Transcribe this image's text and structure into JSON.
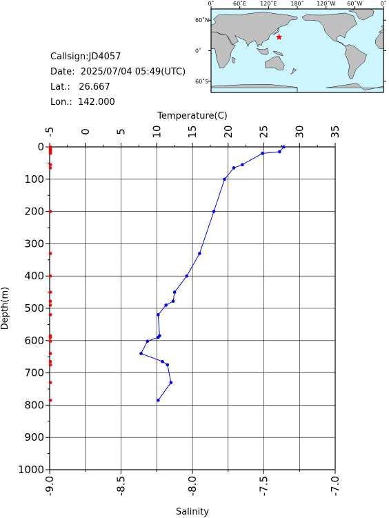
{
  "station": {
    "callsign_label": "Callsign:",
    "callsign": "JD4057",
    "date_label": "Date:",
    "date": "2025/07/04 05:49(UTC)",
    "lat_label": "Lat.:",
    "lat": "26.667",
    "lon_label": "Lon.:",
    "lon": "142.000"
  },
  "map": {
    "top_ticks": [
      "0˚",
      "60˚E",
      "120˚E",
      "180˚",
      "120˚W",
      "60˚W",
      "0˚"
    ],
    "right_ticks": [
      "60˚N",
      "0˚",
      "60˚S"
    ],
    "ocean_color": "#ccf5ff",
    "land_color": "#bfbfbf",
    "marker_color": "#ff0000",
    "marker": {
      "lon": 142.0,
      "lat": 26.667
    }
  },
  "chart_data": {
    "type": "line",
    "title": "",
    "top_axis_label": "Temperature(C)",
    "bottom_axis_label": "Salinity",
    "left_axis_label": "Depth(m)",
    "temperature_range": [
      -5,
      35
    ],
    "temperature_ticks": [
      "-5",
      "0",
      "5",
      "10",
      "15",
      "20",
      "25",
      "30",
      "35"
    ],
    "salinity_range": [
      -9.0,
      -7.0
    ],
    "salinity_ticks": [
      "-9.0",
      "-8.5",
      "-8.0",
      "-7.5",
      "-7.0"
    ],
    "depth_range": [
      0,
      1000
    ],
    "depth_ticks": [
      "0",
      "100",
      "200",
      "300",
      "400",
      "500",
      "600",
      "700",
      "800",
      "900",
      "1000"
    ],
    "grid": true,
    "series": [
      {
        "color": "#0000ff",
        "depth": [
          0,
          15,
          20,
          55,
          65,
          100,
          200,
          330,
          400,
          450,
          478,
          490,
          520,
          585,
          590,
          602,
          640,
          665,
          675,
          730,
          785
        ],
        "values": [
          27.8,
          27.2,
          24.8,
          22.0,
          20.8,
          19.5,
          18.0,
          16.0,
          14.2,
          12.5,
          12.3,
          11.3,
          10.2,
          10.4,
          10.2,
          8.7,
          7.8,
          10.8,
          11.5,
          12.0,
          10.2
        ]
      },
      {
        "color": "#ff0000",
        "depth": [
          0,
          5,
          10,
          15,
          20,
          55,
          65,
          200,
          330,
          400,
          450,
          478,
          490,
          520,
          585,
          590,
          602,
          640,
          665,
          675,
          730,
          785
        ],
        "values": [
          -9.0,
          -9.0,
          -9.0,
          -9.0,
          -9.0,
          -9.0,
          -9.0,
          -9.0,
          -9.0,
          -9.0,
          -9.0,
          -9.0,
          -9.0,
          -9.0,
          -9.0,
          -9.0,
          -9.0,
          -9.0,
          -9.0,
          -9.0,
          -9.0,
          -9.0
        ]
      }
    ]
  }
}
